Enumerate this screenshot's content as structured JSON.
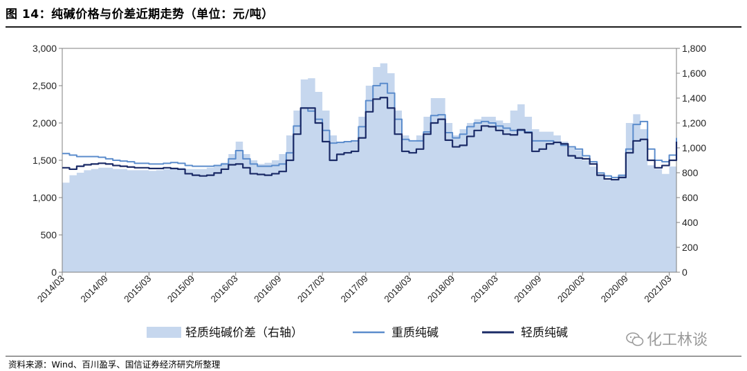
{
  "title": "图 14：纯碱价格与价差近期走势（单位：元/吨）",
  "source": "资料来源：Wind、百川盈孚、国信证券经济研究所整理",
  "watermark": "化工林谈",
  "chart_data": {
    "type": "line",
    "title": "纯碱价格与价差近期走势（单位：元/吨）",
    "xlabel": "",
    "ylabel": "",
    "categories": [
      "2014/03",
      "2014/04",
      "2014/05",
      "2014/06",
      "2014/07",
      "2014/08",
      "2014/09",
      "2014/10",
      "2014/11",
      "2014/12",
      "2015/01",
      "2015/02",
      "2015/03",
      "2015/04",
      "2015/05",
      "2015/06",
      "2015/07",
      "2015/08",
      "2015/09",
      "2015/10",
      "2015/11",
      "2015/12",
      "2016/01",
      "2016/02",
      "2016/03",
      "2016/04",
      "2016/05",
      "2016/06",
      "2016/07",
      "2016/08",
      "2016/09",
      "2016/10",
      "2016/11",
      "2016/12",
      "2017/01",
      "2017/02",
      "2017/03",
      "2017/04",
      "2017/05",
      "2017/06",
      "2017/07",
      "2017/08",
      "2017/09",
      "2017/10",
      "2017/11",
      "2017/12",
      "2018/01",
      "2018/02",
      "2018/03",
      "2018/04",
      "2018/05",
      "2018/06",
      "2018/07",
      "2018/08",
      "2018/09",
      "2018/10",
      "2018/11",
      "2018/12",
      "2019/01",
      "2019/02",
      "2019/03",
      "2019/04",
      "2019/05",
      "2019/06",
      "2019/07",
      "2019/08",
      "2019/09",
      "2019/10",
      "2019/11",
      "2019/12",
      "2020/01",
      "2020/02",
      "2020/03",
      "2020/04",
      "2020/05",
      "2020/06",
      "2020/07",
      "2020/08",
      "2020/09",
      "2020/10",
      "2020/11",
      "2020/12",
      "2021/01",
      "2021/02",
      "2021/03",
      "2021/04"
    ],
    "x_tick_labels": [
      "2014/03",
      "2014/09",
      "2015/03",
      "2015/09",
      "2016/03",
      "2016/09",
      "2017/03",
      "2017/09",
      "2018/03",
      "2018/09",
      "2019/03",
      "2019/09",
      "2020/03",
      "2020/09",
      "2021/03"
    ],
    "y_left": {
      "lim": [
        0,
        3000
      ],
      "ticks": [
        "0",
        "500",
        "1,000",
        "1,500",
        "2,000",
        "2,500",
        "3,000"
      ],
      "tick_values": [
        0,
        500,
        1000,
        1500,
        2000,
        2500,
        3000
      ]
    },
    "y_right": {
      "lim": [
        0,
        1800
      ],
      "ticks": [
        "0",
        "200",
        "400",
        "600",
        "800",
        "1,000",
        "1,200",
        "1,400",
        "1,600",
        "1,800"
      ],
      "tick_values": [
        0,
        200,
        400,
        600,
        800,
        1000,
        1200,
        1400,
        1600,
        1800
      ]
    },
    "series": [
      {
        "name": "轻质纯碱价差（右轴）",
        "kind": "area",
        "axis": "right",
        "color": "#c6d7ee",
        "values": [
          720,
          780,
          800,
          820,
          830,
          840,
          840,
          830,
          830,
          820,
          820,
          820,
          815,
          820,
          830,
          840,
          840,
          830,
          830,
          830,
          840,
          860,
          880,
          950,
          1050,
          950,
          900,
          870,
          880,
          900,
          950,
          1100,
          1300,
          1550,
          1560,
          1450,
          1300,
          1100,
          1050,
          1050,
          1060,
          1250,
          1500,
          1650,
          1680,
          1600,
          1300,
          1100,
          1050,
          1100,
          1250,
          1400,
          1400,
          1200,
          1100,
          1150,
          1200,
          1230,
          1250,
          1250,
          1220,
          1200,
          1300,
          1350,
          1250,
          1150,
          1130,
          1130,
          1100,
          1050,
          1000,
          980,
          900,
          850,
          780,
          740,
          740,
          780,
          1200,
          1270,
          1150,
          860,
          830,
          790,
          850,
          1050
        ]
      },
      {
        "name": "重质纯碱",
        "kind": "line",
        "axis": "left",
        "color": "#5b8ccc",
        "values": [
          1590,
          1570,
          1550,
          1550,
          1550,
          1540,
          1520,
          1500,
          1490,
          1480,
          1460,
          1460,
          1450,
          1450,
          1460,
          1470,
          1460,
          1430,
          1420,
          1420,
          1420,
          1430,
          1450,
          1520,
          1630,
          1520,
          1450,
          1420,
          1420,
          1430,
          1450,
          1600,
          1960,
          2200,
          2160,
          2050,
          1900,
          1730,
          1740,
          1750,
          1760,
          1950,
          2300,
          2500,
          2530,
          2400,
          2050,
          1780,
          1760,
          1760,
          1880,
          2100,
          2110,
          1870,
          1800,
          1850,
          1950,
          2000,
          2020,
          2000,
          1960,
          1930,
          1900,
          1900,
          1880,
          1760,
          1760,
          1760,
          1740,
          1700,
          1680,
          1650,
          1560,
          1480,
          1330,
          1290,
          1270,
          1300,
          1650,
          1980,
          2020,
          1650,
          1500,
          1480,
          1570,
          1800
        ]
      },
      {
        "name": "轻质纯碱",
        "kind": "line",
        "axis": "left",
        "color": "#1a2a66",
        "values": [
          1400,
          1380,
          1420,
          1440,
          1450,
          1460,
          1450,
          1430,
          1420,
          1410,
          1400,
          1400,
          1390,
          1390,
          1400,
          1390,
          1380,
          1320,
          1300,
          1290,
          1300,
          1330,
          1380,
          1440,
          1450,
          1400,
          1320,
          1310,
          1300,
          1320,
          1350,
          1500,
          1850,
          2200,
          2200,
          2000,
          1750,
          1500,
          1580,
          1600,
          1620,
          1800,
          2150,
          2320,
          2340,
          2200,
          1850,
          1620,
          1600,
          1650,
          1850,
          2000,
          2050,
          1770,
          1680,
          1700,
          1820,
          1900,
          1960,
          1950,
          1900,
          1850,
          1840,
          1910,
          1870,
          1620,
          1650,
          1720,
          1740,
          1720,
          1560,
          1530,
          1520,
          1450,
          1300,
          1250,
          1240,
          1270,
          1600,
          1760,
          1780,
          1500,
          1400,
          1430,
          1500,
          1750
        ]
      }
    ],
    "legend": {
      "placement": "bottom",
      "entries": [
        "轻质纯碱价差（右轴）",
        "重质纯碱",
        "轻质纯碱"
      ]
    },
    "grid": false
  }
}
